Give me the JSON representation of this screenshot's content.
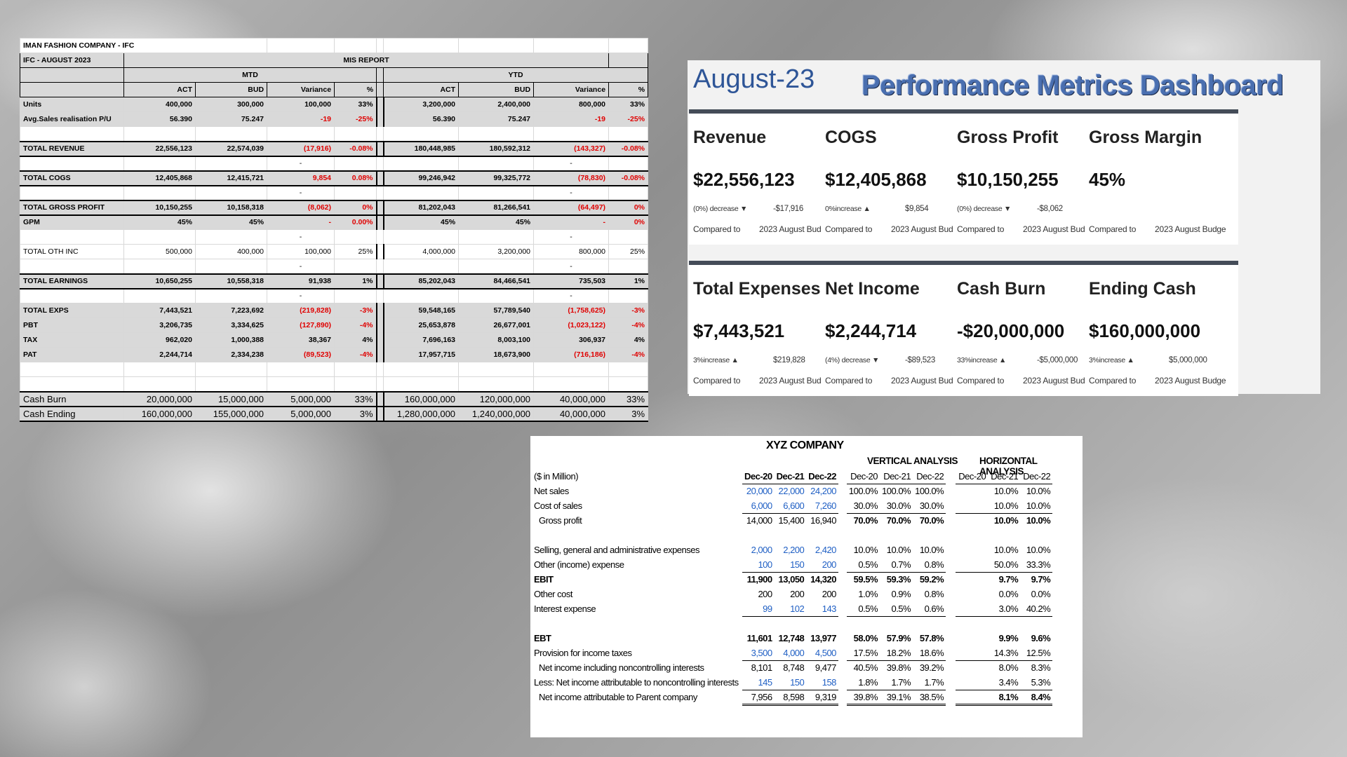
{
  "mis": {
    "company": "IMAN FASHION COMPANY - IFC",
    "period": "IFC - AUGUST  2023",
    "report": "MIS REPORT",
    "mtd": "MTD",
    "ytd": "YTD",
    "cols": [
      "ACT",
      "BUD",
      "Variance",
      "%",
      "ACT",
      "BUD",
      "Variance",
      "%"
    ],
    "rows": [
      {
        "label": "Units",
        "vals": [
          "400,000",
          "300,000",
          "100,000",
          "33%",
          "3,200,000",
          "2,400,000",
          "800,000",
          "33%"
        ]
      },
      {
        "label": "Avg.Sales realisation P/U",
        "vals": [
          "56.390",
          "75.247",
          "-19",
          "-25%",
          "56.390",
          "75.247",
          "-19",
          "-25%"
        ]
      },
      {
        "label": "TOTAL REVENUE",
        "vals": [
          "22,556,123",
          "22,574,039",
          "(17,916)",
          "-0.08%",
          "180,448,985",
          "180,592,312",
          "(143,327)",
          "-0.08%"
        ]
      },
      {
        "label": "TOTAL COGS",
        "vals": [
          "12,405,868",
          "12,415,721",
          "9,854",
          "0.08%",
          "99,246,942",
          "99,325,772",
          "(78,830)",
          "-0.08%"
        ]
      },
      {
        "label": "TOTAL GROSS PROFIT",
        "vals": [
          "10,150,255",
          "10,158,318",
          "(8,062)",
          "0%",
          "81,202,043",
          "81,266,541",
          "(64,497)",
          "0%"
        ]
      },
      {
        "label": "GPM",
        "vals": [
          "45%",
          "45%",
          "-",
          "0.00%",
          "45%",
          "45%",
          "-",
          "0%"
        ]
      },
      {
        "label": "TOTAL OTH INC",
        "vals": [
          "500,000",
          "400,000",
          "100,000",
          "25%",
          "4,000,000",
          "3,200,000",
          "800,000",
          "25%"
        ]
      },
      {
        "label": "TOTAL EARNINGS",
        "vals": [
          "10,650,255",
          "10,558,318",
          "91,938",
          "1%",
          "85,202,043",
          "84,466,541",
          "735,503",
          "1%"
        ]
      },
      {
        "label": "TOTAL EXPS",
        "vals": [
          "7,443,521",
          "7,223,692",
          "(219,828)",
          "-3%",
          "59,548,165",
          "57,789,540",
          "(1,758,625)",
          "-3%"
        ]
      },
      {
        "label": "PBT",
        "vals": [
          "3,206,735",
          "3,334,625",
          "(127,890)",
          "-4%",
          "25,653,878",
          "26,677,001",
          "(1,023,122)",
          "-4%"
        ]
      },
      {
        "label": "TAX",
        "vals": [
          "962,020",
          "1,000,388",
          "38,367",
          "4%",
          "7,696,163",
          "8,003,100",
          "306,937",
          "4%"
        ]
      },
      {
        "label": "PAT",
        "vals": [
          "2,244,714",
          "2,334,238",
          "(89,523)",
          "-4%",
          "17,957,715",
          "18,673,900",
          "(716,186)",
          "-4%"
        ]
      },
      {
        "label": "Cash Burn",
        "vals": [
          "20,000,000",
          "15,000,000",
          "5,000,000",
          "33%",
          "160,000,000",
          "120,000,000",
          "40,000,000",
          "33%"
        ]
      },
      {
        "label": "Cash Ending",
        "vals": [
          "160,000,000",
          "155,000,000",
          "5,000,000",
          "3%",
          "1,280,000,000",
          "1,240,000,000",
          "40,000,000",
          "3%"
        ]
      }
    ],
    "dash": "-"
  },
  "dashboard": {
    "date": "August-23",
    "title": "Performance Metrics  Dashboard",
    "compared_to": "Compared to",
    "reference": "2023 August Budge",
    "cards": [
      {
        "label": "Revenue",
        "value": "$22,556,123",
        "change": "(0%) decrease ▼",
        "diff": "-$17,916"
      },
      {
        "label": "COGS",
        "value": "$12,405,868",
        "change": "0%increase ▲",
        "diff": "$9,854"
      },
      {
        "label": "Gross Profit",
        "value": "$10,150,255",
        "change": "(0%) decrease ▼",
        "diff": "-$8,062"
      },
      {
        "label": "Gross Margin",
        "value": "45%",
        "change": "",
        "diff": ""
      },
      {
        "label": "Total Expenses",
        "value": "$7,443,521",
        "change": "3%increase ▲",
        "diff": "$219,828"
      },
      {
        "label": "Net Income",
        "value": "$2,244,714",
        "change": "(4%) decrease ▼",
        "diff": "-$89,523"
      },
      {
        "label": "Cash Burn",
        "value": "-$20,000,000",
        "change": "33%increase ▲",
        "diff": "-$5,000,000"
      },
      {
        "label": "Ending Cash",
        "value": "$160,000,000",
        "change": "3%increase ▲",
        "diff": "$5,000,000"
      }
    ]
  },
  "xyz": {
    "title": "XYZ COMPANY",
    "vertical": "VERTICAL ANALYSIS",
    "horizontal": "HORIZONTAL ANALYSIS",
    "unit": "($ in Million)",
    "years": [
      "Dec-20",
      "Dec-21",
      "Dec-22"
    ],
    "rows": [
      {
        "label": "Net sales",
        "vals": [
          "20,000",
          "22,000",
          "24,200"
        ],
        "vert": [
          "100.0%",
          "100.0%",
          "100.0%"
        ],
        "hor": [
          "10.0%",
          "10.0%"
        ]
      },
      {
        "label": "Cost of sales",
        "vals": [
          "6,000",
          "6,600",
          "7,260"
        ],
        "vert": [
          "30.0%",
          "30.0%",
          "30.0%"
        ],
        "hor": [
          "10.0%",
          "10.0%"
        ]
      },
      {
        "label": "  Gross profit",
        "vals": [
          "14,000",
          "15,400",
          "16,940"
        ],
        "vert": [
          "70.0%",
          "70.0%",
          "70.0%"
        ],
        "hor": [
          "10.0%",
          "10.0%"
        ]
      },
      {
        "label": "Selling, general and administrative expenses",
        "vals": [
          "2,000",
          "2,200",
          "2,420"
        ],
        "vert": [
          "10.0%",
          "10.0%",
          "10.0%"
        ],
        "hor": [
          "10.0%",
          "10.0%"
        ]
      },
      {
        "label": "Other (income) expense",
        "vals": [
          "100",
          "150",
          "200"
        ],
        "vert": [
          "0.5%",
          "0.7%",
          "0.8%"
        ],
        "hor": [
          "50.0%",
          "33.3%"
        ]
      },
      {
        "label": "EBIT",
        "vals": [
          "11,900",
          "13,050",
          "14,320"
        ],
        "vert": [
          "59.5%",
          "59.3%",
          "59.2%"
        ],
        "hor": [
          "9.7%",
          "9.7%"
        ]
      },
      {
        "label": "Other cost",
        "vals": [
          "200",
          "200",
          "200"
        ],
        "vert": [
          "1.0%",
          "0.9%",
          "0.8%"
        ],
        "hor": [
          "0.0%",
          "0.0%"
        ]
      },
      {
        "label": "Interest expense",
        "vals": [
          "99",
          "102",
          "143"
        ],
        "vert": [
          "0.5%",
          "0.5%",
          "0.6%"
        ],
        "hor": [
          "3.0%",
          "40.2%"
        ]
      },
      {
        "label": "EBT",
        "vals": [
          "11,601",
          "12,748",
          "13,977"
        ],
        "vert": [
          "58.0%",
          "57.9%",
          "57.8%"
        ],
        "hor": [
          "9.9%",
          "9.6%"
        ]
      },
      {
        "label": "Provision for income taxes",
        "vals": [
          "3,500",
          "4,000",
          "4,500"
        ],
        "vert": [
          "17.5%",
          "18.2%",
          "18.6%"
        ],
        "hor": [
          "14.3%",
          "12.5%"
        ]
      },
      {
        "label": "  Net income including noncontrolling interests",
        "vals": [
          "8,101",
          "8,748",
          "9,477"
        ],
        "vert": [
          "40.5%",
          "39.8%",
          "39.2%"
        ],
        "hor": [
          "8.0%",
          "8.3%"
        ]
      },
      {
        "label": "Less: Net income attributable to noncontrolling interests",
        "vals": [
          "145",
          "150",
          "158"
        ],
        "vert": [
          "1.8%",
          "1.7%",
          "1.7%"
        ],
        "hor": [
          "3.4%",
          "5.3%"
        ]
      },
      {
        "label": "  Net income attributable to Parent company",
        "vals": [
          "7,956",
          "8,598",
          "9,319"
        ],
        "vert": [
          "39.8%",
          "39.1%",
          "38.5%"
        ],
        "hor": [
          "8.1%",
          "8.4%"
        ]
      }
    ]
  }
}
